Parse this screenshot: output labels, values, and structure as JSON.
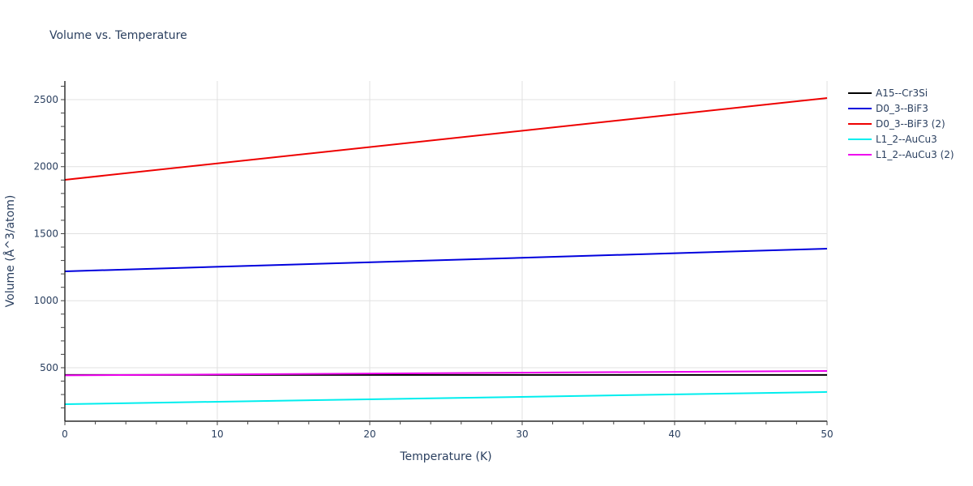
{
  "chart_data": {
    "type": "line",
    "title": "Volume vs. Temperature",
    "xlabel": "Temperature (K)",
    "ylabel": "Volume (Å^3/atom)",
    "xlim": [
      0,
      50
    ],
    "ylim": [
      101,
      2639
    ],
    "x_ticks": [
      0,
      10,
      20,
      30,
      40,
      50
    ],
    "y_ticks": [
      500,
      1000,
      1500,
      2000,
      2500
    ],
    "grid": true,
    "legend_position": "right",
    "x": [
      0,
      50
    ],
    "series": [
      {
        "name": "A15--Cr3Si",
        "color": "#000000",
        "values": [
          446,
          446
        ]
      },
      {
        "name": "D0_3--BiF3",
        "color": "#0000dd",
        "values": [
          1219,
          1388
        ]
      },
      {
        "name": "D0_3--BiF3 (2)",
        "color": "#ee0000",
        "values": [
          1902,
          2512
        ]
      },
      {
        "name": "L1_2--AuCu3",
        "color": "#00eeee",
        "values": [
          228,
          319
        ]
      },
      {
        "name": "L1_2--AuCu3 (2)",
        "color": "#ee00ee",
        "values": [
          443,
          476
        ]
      }
    ]
  }
}
